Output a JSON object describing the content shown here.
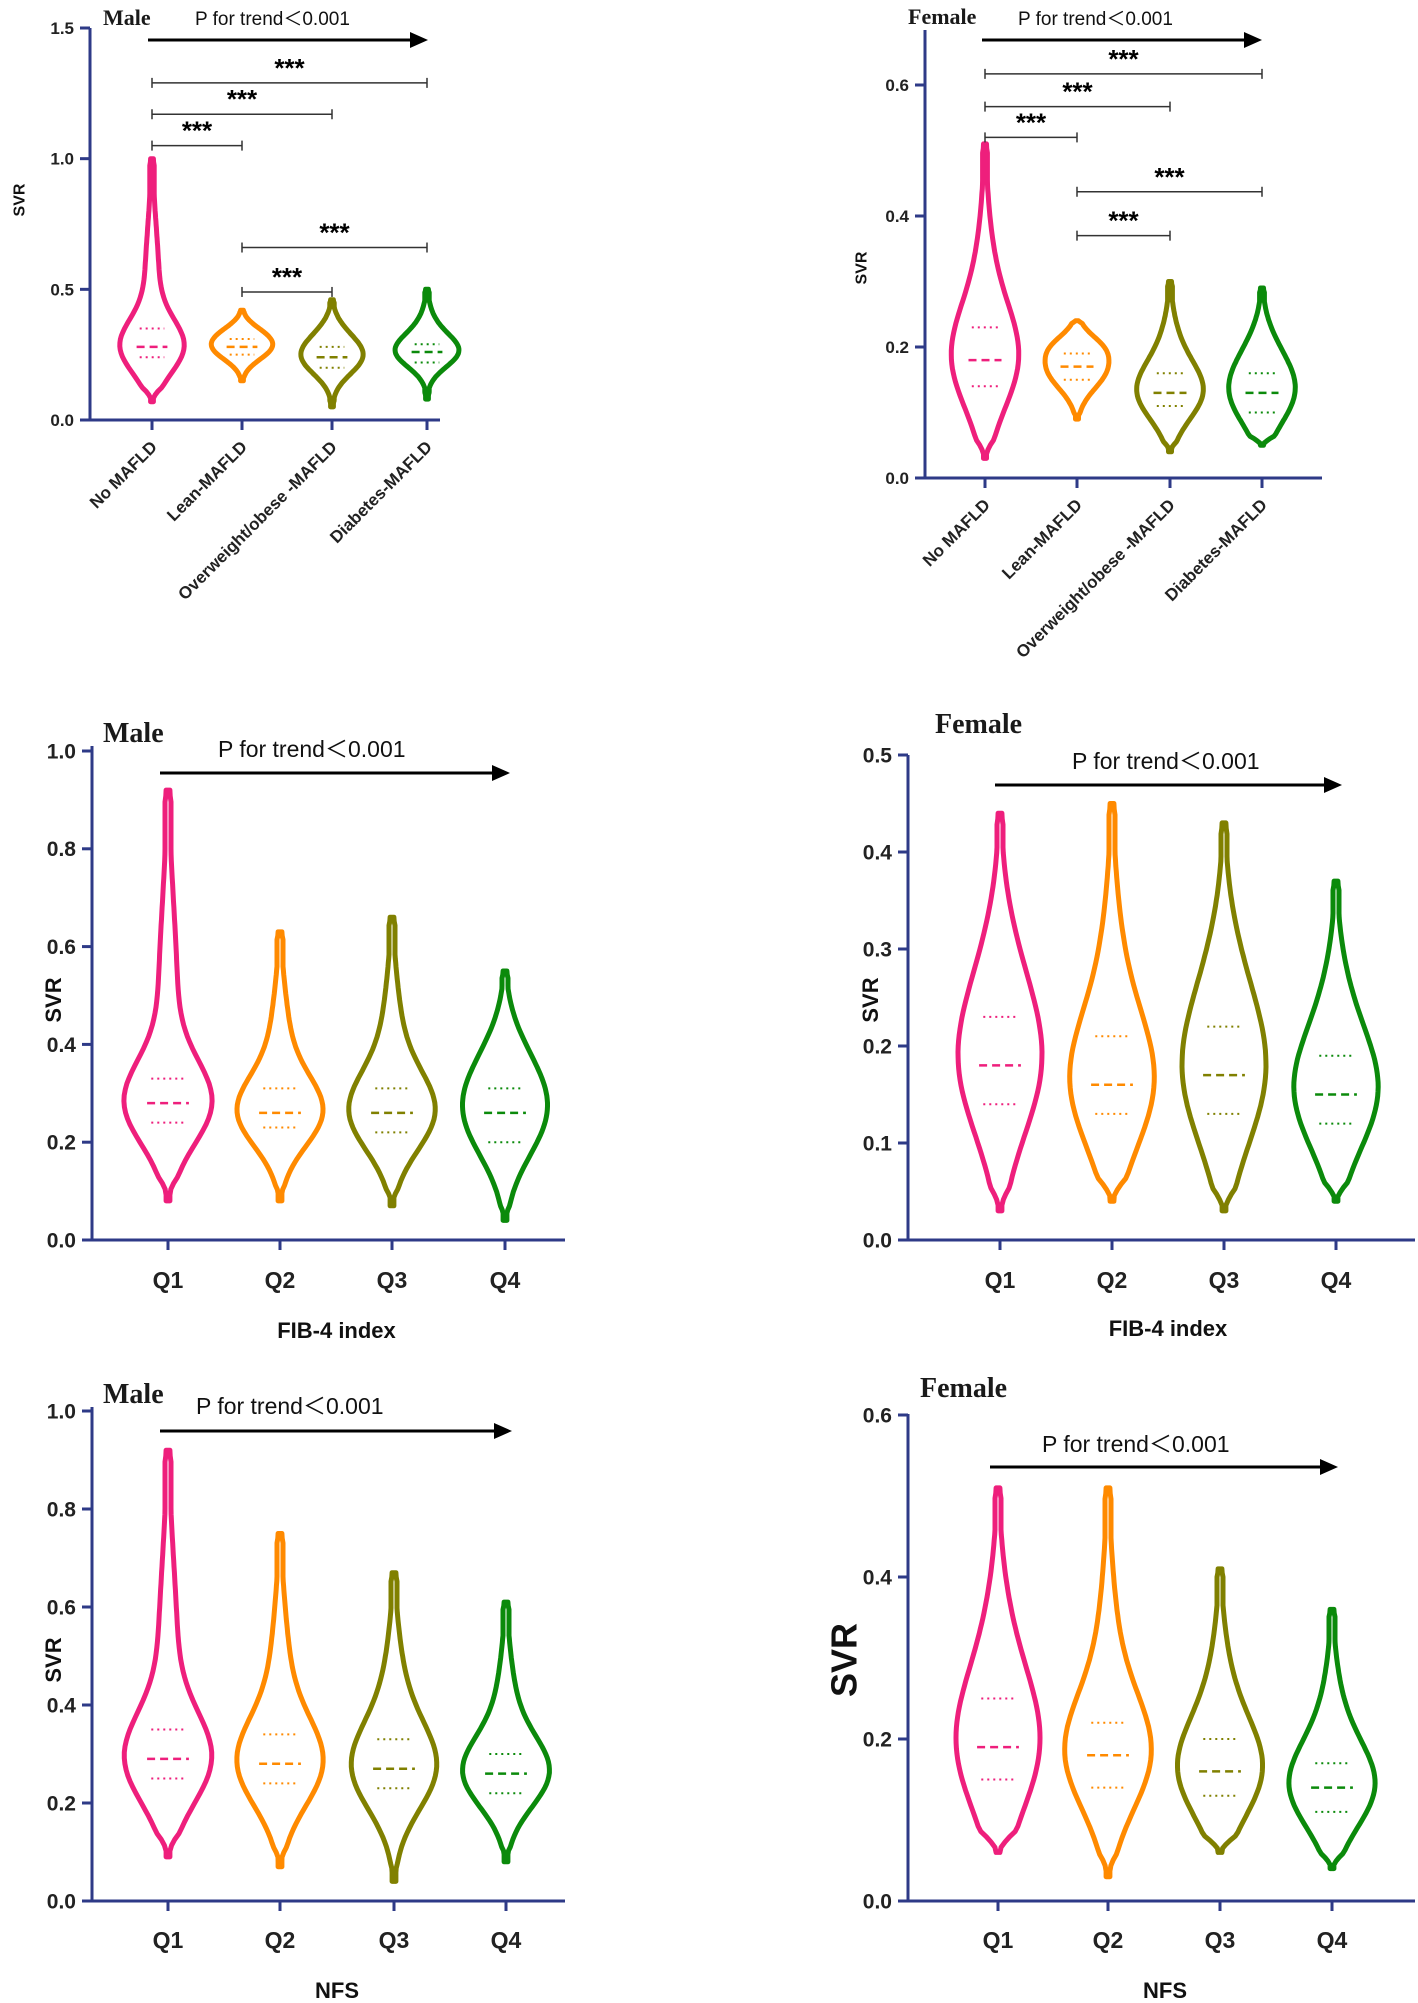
{
  "colors": {
    "axis": "#2e3a87",
    "pink": "#ee1f7c",
    "orange": "#ff8a00",
    "olive": "#808000",
    "green": "#0b8a0b",
    "black": "#000000"
  },
  "chart_data": [
    {
      "id": "p1",
      "type": "violin",
      "title": "Male",
      "trend_text": "P for trend＜0.001",
      "ylabel": "SVR",
      "xlabel": "",
      "ylim": [
        0,
        1.5
      ],
      "yticks": [
        "0.0",
        "0.5",
        "1.0",
        "1.5"
      ],
      "categories": [
        "No MAFLD",
        "Lean-MAFLD",
        "Overweight/obese -MAFLD",
        "Diabetes-MAFLD"
      ],
      "series": [
        {
          "name": "No MAFLD",
          "color": "pink",
          "min": 0.07,
          "max": 1.0,
          "q1": 0.24,
          "median": 0.28,
          "q3": 0.35
        },
        {
          "name": "Lean-MAFLD",
          "color": "orange",
          "min": 0.15,
          "max": 0.42,
          "q1": 0.25,
          "median": 0.28,
          "q3": 0.31
        },
        {
          "name": "Overweight/obese -MAFLD",
          "color": "olive",
          "min": 0.05,
          "max": 0.46,
          "q1": 0.2,
          "median": 0.24,
          "q3": 0.28
        },
        {
          "name": "Diabetes-MAFLD",
          "color": "green",
          "min": 0.08,
          "max": 0.5,
          "q1": 0.22,
          "median": 0.26,
          "q3": 0.29
        }
      ],
      "significance": [
        {
          "from": 0,
          "to": 1,
          "label": "***",
          "y": 1.05
        },
        {
          "from": 0,
          "to": 2,
          "label": "***",
          "y": 1.17
        },
        {
          "from": 0,
          "to": 3,
          "label": "***",
          "y": 1.29
        },
        {
          "from": 1,
          "to": 2,
          "label": "***",
          "y": 0.49
        },
        {
          "from": 1,
          "to": 3,
          "label": "***",
          "y": 0.66
        }
      ]
    },
    {
      "id": "p2",
      "type": "violin",
      "title": "Female",
      "trend_text": "P for trend＜0.001",
      "ylabel": "SVR",
      "xlabel": "",
      "ylim": [
        0,
        0.7
      ],
      "yticks": [
        "0.0",
        "0.2",
        "0.4",
        "0.6"
      ],
      "categories": [
        "No MAFLD",
        "Lean-MAFLD",
        "Overweight/obese -MAFLD",
        "Diabetes-MAFLD"
      ],
      "series": [
        {
          "name": "No MAFLD",
          "color": "pink",
          "min": 0.03,
          "max": 0.51,
          "q1": 0.14,
          "median": 0.18,
          "q3": 0.23
        },
        {
          "name": "Lean-MAFLD",
          "color": "orange",
          "min": 0.09,
          "max": 0.24,
          "q1": 0.15,
          "median": 0.17,
          "q3": 0.19
        },
        {
          "name": "Overweight/obese -MAFLD",
          "color": "olive",
          "min": 0.04,
          "max": 0.3,
          "q1": 0.11,
          "median": 0.13,
          "q3": 0.16
        },
        {
          "name": "Diabetes-MAFLD",
          "color": "green",
          "min": 0.05,
          "max": 0.29,
          "q1": 0.1,
          "median": 0.13,
          "q3": 0.16
        }
      ],
      "significance": [
        {
          "from": 0,
          "to": 1,
          "label": "***",
          "y": 0.52
        },
        {
          "from": 0,
          "to": 2,
          "label": "***",
          "y": 0.567
        },
        {
          "from": 0,
          "to": 3,
          "label": "***",
          "y": 0.617
        },
        {
          "from": 1,
          "to": 2,
          "label": "***",
          "y": 0.37
        },
        {
          "from": 1,
          "to": 3,
          "label": "***",
          "y": 0.437
        }
      ]
    },
    {
      "id": "p3",
      "type": "violin",
      "title": "Male",
      "trend_text": "P for trend＜0.001",
      "ylabel": "SVR",
      "xlabel": "FIB-4 index",
      "ylim": [
        0,
        1.0
      ],
      "yticks": [
        "0.0",
        "0.2",
        "0.4",
        "0.6",
        "0.8",
        "1.0"
      ],
      "categories": [
        "Q1",
        "Q2",
        "Q3",
        "Q4"
      ],
      "series": [
        {
          "name": "Q1",
          "color": "pink",
          "min": 0.08,
          "max": 0.92,
          "q1": 0.24,
          "median": 0.28,
          "q3": 0.33
        },
        {
          "name": "Q2",
          "color": "orange",
          "min": 0.08,
          "max": 0.63,
          "q1": 0.23,
          "median": 0.26,
          "q3": 0.31
        },
        {
          "name": "Q3",
          "color": "olive",
          "min": 0.07,
          "max": 0.66,
          "q1": 0.22,
          "median": 0.26,
          "q3": 0.31
        },
        {
          "name": "Q4",
          "color": "green",
          "min": 0.04,
          "max": 0.55,
          "q1": 0.2,
          "median": 0.26,
          "q3": 0.31
        }
      ],
      "significance": []
    },
    {
      "id": "p4",
      "type": "violin",
      "title": "Female",
      "trend_text": "P for trend＜0.001",
      "ylabel": "SVR",
      "xlabel": "FIB-4 index",
      "ylim": [
        0,
        0.5
      ],
      "yticks": [
        "0.0",
        "0.1",
        "0.2",
        "0.3",
        "0.4",
        "0.5"
      ],
      "categories": [
        "Q1",
        "Q2",
        "Q3",
        "Q4"
      ],
      "series": [
        {
          "name": "Q1",
          "color": "pink",
          "min": 0.03,
          "max": 0.44,
          "q1": 0.14,
          "median": 0.18,
          "q3": 0.23
        },
        {
          "name": "Q2",
          "color": "orange",
          "min": 0.04,
          "max": 0.45,
          "q1": 0.13,
          "median": 0.16,
          "q3": 0.21
        },
        {
          "name": "Q3",
          "color": "olive",
          "min": 0.03,
          "max": 0.43,
          "q1": 0.13,
          "median": 0.17,
          "q3": 0.22
        },
        {
          "name": "Q4",
          "color": "green",
          "min": 0.04,
          "max": 0.37,
          "q1": 0.12,
          "median": 0.15,
          "q3": 0.19
        }
      ],
      "significance": []
    },
    {
      "id": "p5",
      "type": "violin",
      "title": "Male",
      "trend_text": "P for trend＜0.001",
      "ylabel": "SVR",
      "xlabel": "NFS",
      "ylim": [
        0,
        1.0
      ],
      "yticks": [
        "0.0",
        "0.2",
        "0.4",
        "0.6",
        "0.8",
        "1.0"
      ],
      "categories": [
        "Q1",
        "Q2",
        "Q3",
        "Q4"
      ],
      "series": [
        {
          "name": "Q1",
          "color": "pink",
          "min": 0.09,
          "max": 0.92,
          "q1": 0.25,
          "median": 0.29,
          "q3": 0.35
        },
        {
          "name": "Q2",
          "color": "orange",
          "min": 0.07,
          "max": 0.75,
          "q1": 0.24,
          "median": 0.28,
          "q3": 0.34
        },
        {
          "name": "Q3",
          "color": "olive",
          "min": 0.04,
          "max": 0.67,
          "q1": 0.23,
          "median": 0.27,
          "q3": 0.33
        },
        {
          "name": "Q4",
          "color": "green",
          "min": 0.08,
          "max": 0.61,
          "q1": 0.22,
          "median": 0.26,
          "q3": 0.3
        }
      ],
      "significance": []
    },
    {
      "id": "p6",
      "type": "violin",
      "title": "Female",
      "trend_text": "P for trend＜0.001",
      "ylabel": "SVR",
      "xlabel": "NFS",
      "ylim": [
        0,
        0.6
      ],
      "yticks": [
        "0.0",
        "0.2",
        "0.4",
        "0.6"
      ],
      "categories": [
        "Q1",
        "Q2",
        "Q3",
        "Q4"
      ],
      "series": [
        {
          "name": "Q1",
          "color": "pink",
          "min": 0.06,
          "max": 0.51,
          "q1": 0.15,
          "median": 0.19,
          "q3": 0.25
        },
        {
          "name": "Q2",
          "color": "orange",
          "min": 0.03,
          "max": 0.51,
          "q1": 0.14,
          "median": 0.18,
          "q3": 0.22
        },
        {
          "name": "Q3",
          "color": "olive",
          "min": 0.06,
          "max": 0.41,
          "q1": 0.13,
          "median": 0.16,
          "q3": 0.2
        },
        {
          "name": "Q4",
          "color": "green",
          "min": 0.04,
          "max": 0.36,
          "q1": 0.11,
          "median": 0.14,
          "q3": 0.17
        }
      ],
      "significance": []
    }
  ]
}
